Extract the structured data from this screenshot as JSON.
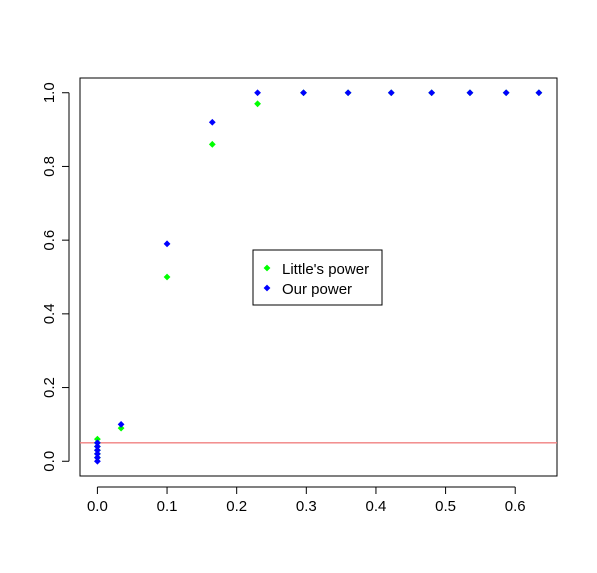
{
  "chart_data": {
    "type": "scatter",
    "title": "",
    "xlabel": "",
    "ylabel": "",
    "xlim": [
      -0.025,
      0.66
    ],
    "ylim": [
      -0.04,
      1.04
    ],
    "x_ticks": [
      0.0,
      0.1,
      0.2,
      0.3,
      0.4,
      0.5,
      0.6
    ],
    "x_tick_labels": [
      "0.0",
      "0.1",
      "0.2",
      "0.3",
      "0.4",
      "0.5",
      "0.6"
    ],
    "y_ticks": [
      0.0,
      0.2,
      0.4,
      0.6,
      0.8,
      1.0
    ],
    "y_tick_labels": [
      "0.0",
      "0.2",
      "0.4",
      "0.6",
      "0.8",
      "1.0"
    ],
    "grid": false,
    "legend_position": "center",
    "reference_line": {
      "y": 0.05,
      "color": "#f08080"
    },
    "series": [
      {
        "name": "Little's power",
        "color": "#00ff00",
        "points": [
          {
            "x": 0.0,
            "y": 0.06
          },
          {
            "x": 0.0,
            "y": 0.05
          },
          {
            "x": 0.0,
            "y": 0.04
          },
          {
            "x": 0.0,
            "y": 0.03
          },
          {
            "x": 0.0,
            "y": 0.02
          },
          {
            "x": 0.0,
            "y": 0.01
          },
          {
            "x": 0.034,
            "y": 0.09
          },
          {
            "x": 0.1,
            "y": 0.5
          },
          {
            "x": 0.165,
            "y": 0.86
          },
          {
            "x": 0.23,
            "y": 0.97
          },
          {
            "x": 0.296,
            "y": 1.0
          },
          {
            "x": 0.36,
            "y": 1.0
          },
          {
            "x": 0.422,
            "y": 1.0
          },
          {
            "x": 0.48,
            "y": 1.0
          },
          {
            "x": 0.535,
            "y": 1.0
          },
          {
            "x": 0.587,
            "y": 1.0
          },
          {
            "x": 0.634,
            "y": 1.0
          }
        ]
      },
      {
        "name": "Our power",
        "color": "#0000ff",
        "points": [
          {
            "x": 0.0,
            "y": 0.05
          },
          {
            "x": 0.0,
            "y": 0.04
          },
          {
            "x": 0.0,
            "y": 0.03
          },
          {
            "x": 0.0,
            "y": 0.02
          },
          {
            "x": 0.0,
            "y": 0.01
          },
          {
            "x": 0.0,
            "y": 0.0
          },
          {
            "x": 0.034,
            "y": 0.1
          },
          {
            "x": 0.1,
            "y": 0.59
          },
          {
            "x": 0.165,
            "y": 0.92
          },
          {
            "x": 0.23,
            "y": 1.0
          },
          {
            "x": 0.296,
            "y": 1.0
          },
          {
            "x": 0.36,
            "y": 1.0
          },
          {
            "x": 0.422,
            "y": 1.0
          },
          {
            "x": 0.48,
            "y": 1.0
          },
          {
            "x": 0.535,
            "y": 1.0
          },
          {
            "x": 0.587,
            "y": 1.0
          },
          {
            "x": 0.634,
            "y": 1.0
          }
        ]
      }
    ]
  }
}
